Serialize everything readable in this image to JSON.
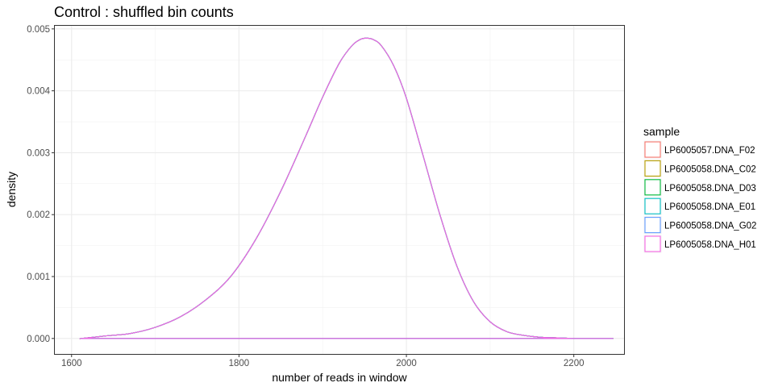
{
  "chart_data": {
    "type": "line",
    "title": "Control : shuffled bin counts",
    "xlabel": "number of reads in window",
    "ylabel": "density",
    "xlim": [
      1580,
      2260
    ],
    "ylim": [
      -0.00025,
      0.00505
    ],
    "x_ticks": [
      1600,
      1800,
      2000,
      2200
    ],
    "x_tick_labels": [
      "1600",
      "1800",
      "2000",
      "2200"
    ],
    "y_ticks": [
      0,
      0.001,
      0.002,
      0.003,
      0.004,
      0.005
    ],
    "y_tick_labels": [
      "0.000",
      "0.001",
      "0.002",
      "0.003",
      "0.004",
      "0.005"
    ],
    "grid": true,
    "legend": {
      "title": "sample",
      "position": "right"
    },
    "x": [
      1612,
      1640,
      1670,
      1700,
      1730,
      1760,
      1790,
      1820,
      1850,
      1880,
      1900,
      1920,
      1935,
      1945,
      1952,
      1960,
      1970,
      1985,
      2000,
      2020,
      2040,
      2060,
      2080,
      2100,
      2120,
      2140,
      2160,
      2180,
      2200,
      2220,
      2245
    ],
    "series": [
      {
        "name": "LP6005057.DNA_F02",
        "color": "#F8766D",
        "values": [
          0.0,
          4e-05,
          8e-05,
          0.00018,
          0.00035,
          0.00062,
          0.001,
          0.0016,
          0.00238,
          0.00328,
          0.0039,
          0.00445,
          0.00473,
          0.00483,
          0.00485,
          0.00483,
          0.00473,
          0.0044,
          0.00388,
          0.00295,
          0.002,
          0.00118,
          0.0006,
          0.00027,
          0.00011,
          5e-05,
          2e-05,
          1e-05,
          0.0,
          0.0,
          0.0
        ]
      },
      {
        "name": "LP6005058.DNA_C02",
        "color": "#B79F00",
        "values": [
          0.0,
          4e-05,
          8e-05,
          0.00018,
          0.00035,
          0.00062,
          0.001,
          0.0016,
          0.00238,
          0.00328,
          0.0039,
          0.00445,
          0.00473,
          0.00483,
          0.00485,
          0.00483,
          0.00473,
          0.0044,
          0.00388,
          0.00295,
          0.002,
          0.00118,
          0.0006,
          0.00027,
          0.00011,
          5e-05,
          2e-05,
          1e-05,
          0.0,
          0.0,
          0.0
        ]
      },
      {
        "name": "LP6005058.DNA_D03",
        "color": "#00BA38",
        "values": [
          0.0,
          4e-05,
          8e-05,
          0.00018,
          0.00035,
          0.00062,
          0.001,
          0.0016,
          0.00238,
          0.00328,
          0.0039,
          0.00445,
          0.00473,
          0.00483,
          0.00485,
          0.00483,
          0.00473,
          0.0044,
          0.00388,
          0.00295,
          0.002,
          0.00118,
          0.0006,
          0.00027,
          0.00011,
          5e-05,
          2e-05,
          1e-05,
          0.0,
          0.0,
          0.0
        ]
      },
      {
        "name": "LP6005058.DNA_E01",
        "color": "#00BFC4",
        "values": [
          0.0,
          4e-05,
          8e-05,
          0.00018,
          0.00035,
          0.00062,
          0.001,
          0.0016,
          0.00238,
          0.00328,
          0.0039,
          0.00445,
          0.00473,
          0.00483,
          0.00485,
          0.00483,
          0.00473,
          0.0044,
          0.00388,
          0.00295,
          0.002,
          0.00118,
          0.0006,
          0.00027,
          0.00011,
          5e-05,
          2e-05,
          1e-05,
          0.0,
          0.0,
          0.0
        ]
      },
      {
        "name": "LP6005058.DNA_G02",
        "color": "#619CFF",
        "values": [
          0.0,
          4e-05,
          8e-05,
          0.00018,
          0.00035,
          0.00062,
          0.001,
          0.0016,
          0.00238,
          0.00328,
          0.0039,
          0.00445,
          0.00473,
          0.00483,
          0.00485,
          0.00483,
          0.00473,
          0.0044,
          0.00388,
          0.00295,
          0.002,
          0.00118,
          0.0006,
          0.00027,
          0.00011,
          5e-05,
          2e-05,
          1e-05,
          0.0,
          0.0,
          0.0
        ]
      },
      {
        "name": "LP6005058.DNA_H01",
        "color": "#F564E3",
        "values": [
          0.0,
          4e-05,
          8e-05,
          0.00018,
          0.00035,
          0.00062,
          0.001,
          0.0016,
          0.00238,
          0.00328,
          0.0039,
          0.00445,
          0.00473,
          0.00483,
          0.00485,
          0.00483,
          0.00473,
          0.0044,
          0.00388,
          0.00295,
          0.002,
          0.00118,
          0.0006,
          0.00027,
          0.00011,
          5e-05,
          2e-05,
          1e-05,
          0.0,
          0.0,
          0.0
        ]
      }
    ]
  }
}
